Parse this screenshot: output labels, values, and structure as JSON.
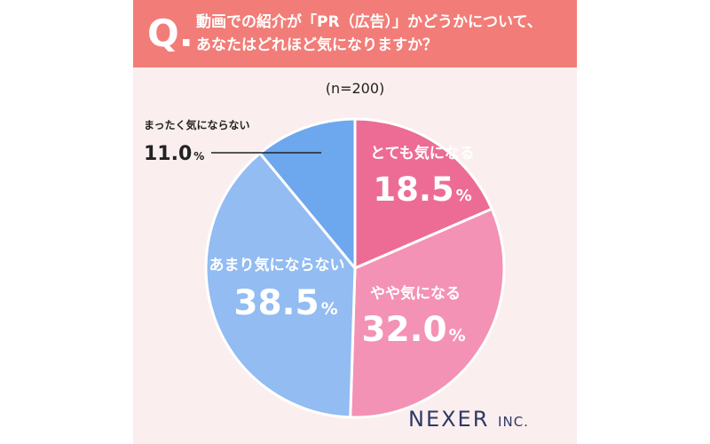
{
  "header": {
    "q_letter": "Q.",
    "question_line1": "動画での紹介が「PR（広告）」かどうかについて、",
    "question_line2": "あなたはどれほど気になりますか？"
  },
  "sample_size": "(n=200)",
  "brand": {
    "name": "NEXER",
    "suffix": "INC."
  },
  "colors": {
    "header_bg": "#f27d78",
    "card_bg": "#fbeeee",
    "very_concerned": "#ec6c95",
    "somewhat_concerned": "#f392b4",
    "not_very_concerned": "#92bcf2",
    "not_at_all_concerned": "#6da7ee",
    "logo": "#2d3a66"
  },
  "chart_data": {
    "type": "pie",
    "title": "",
    "start_angle_deg": 0,
    "direction": "clockwise",
    "slices": [
      {
        "label": "とても気になる",
        "value": 18.5,
        "display": "18.5",
        "unit": "%",
        "color": "#ec6c95"
      },
      {
        "label": "やや気になる",
        "value": 32.0,
        "display": "32.0",
        "unit": "%",
        "color": "#f392b4"
      },
      {
        "label": "あまり気にならない",
        "value": 38.5,
        "display": "38.5",
        "unit": "%",
        "color": "#92bcf2"
      },
      {
        "label": "まったく気にならない",
        "value": 11.0,
        "display": "11.0",
        "unit": "%",
        "color": "#6da7ee"
      }
    ]
  }
}
